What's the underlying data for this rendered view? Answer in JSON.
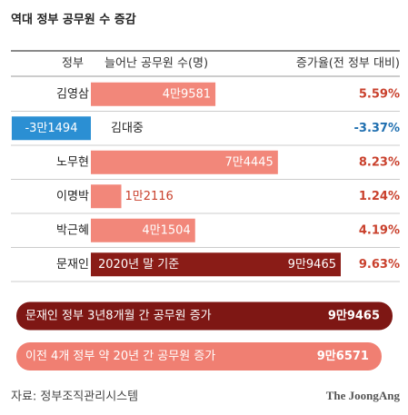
{
  "chart_data": {
    "type": "bar",
    "title": "역대 정부 공무원 수 증감",
    "category_label": "정부",
    "categories": [
      "김영삼",
      "김대중",
      "노무현",
      "이명박",
      "박근혜",
      "문재인"
    ],
    "series": [
      {
        "name": "늘어난 공무원 수(명)",
        "values": [
          49581,
          -31494,
          74445,
          12116,
          41504,
          99465
        ],
        "value_labels": [
          "4만9581",
          "-3만1494",
          "7만4445",
          "1만2116",
          "4만1504",
          "9만9465"
        ],
        "colors": [
          "#f2877a",
          "#2b8fd3",
          "#f2877a",
          "#f2877a",
          "#f2877a",
          "#8a1c17"
        ]
      },
      {
        "name": "증가율(전 정부 대비)",
        "values": [
          5.59,
          -3.37,
          8.23,
          1.24,
          4.19,
          9.63
        ],
        "value_labels": [
          "5.59%",
          "-3.37%",
          "8.23%",
          "1.24%",
          "4.19%",
          "9.63%"
        ],
        "colors": [
          "#c9402c",
          "#1f6fb0",
          "#c9402c",
          "#c9402c",
          "#c9402c",
          "#c9402c"
        ]
      }
    ],
    "note": "2020년 말 기준",
    "summary": [
      {
        "label": "문재인 정부 3년8개월 간 공무원 증가",
        "value": 99465,
        "value_label": "9만9465",
        "color": "#7e1714"
      },
      {
        "label": "이전 4개 정부 약 20년 간 공무원 증가",
        "value": 96571,
        "value_label": "9만6571",
        "color": "#f07f72"
      }
    ],
    "source": "자료: 정부조직관리시스템",
    "brand": "The JoongAng"
  }
}
